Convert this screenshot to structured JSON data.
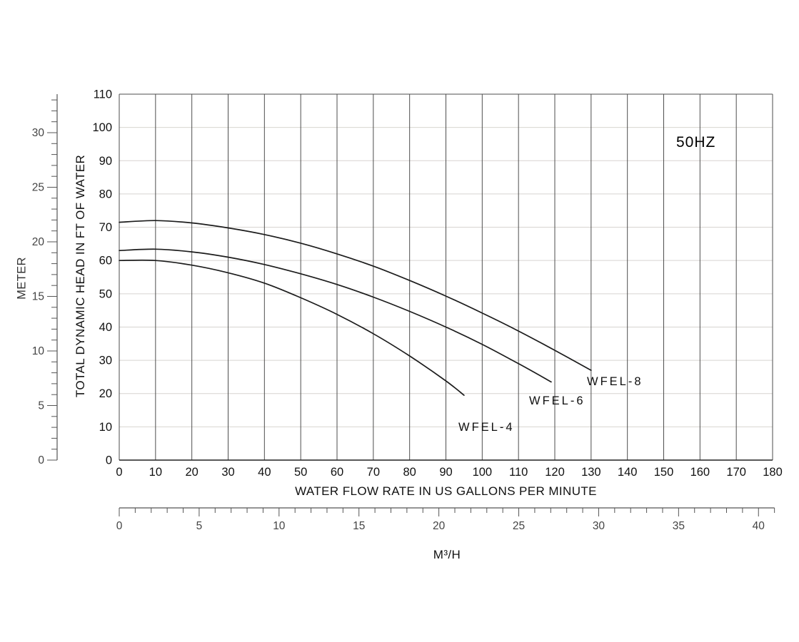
{
  "chart_data": {
    "type": "line",
    "title": "",
    "annotation": "50HZ",
    "xlabel": "WATER FLOW RATE IN US GALLONS PER MINUTE",
    "ylabel": "TOTAL DYNAMIC HEAD IN FT OF WATER",
    "x2label": "M³/H",
    "y2label": "METER",
    "xlim": [
      0,
      180
    ],
    "ylim": [
      0,
      110
    ],
    "x_ticks": [
      0,
      10,
      20,
      30,
      40,
      50,
      60,
      70,
      80,
      90,
      100,
      110,
      120,
      130,
      140,
      150,
      160,
      170,
      180
    ],
    "y_ticks": [
      0,
      10,
      20,
      30,
      40,
      50,
      60,
      70,
      80,
      90,
      100,
      110
    ],
    "meter_ticks": [
      0,
      5,
      10,
      15,
      20,
      25,
      30
    ],
    "meter_minor_max": 33,
    "m3h_ticks": [
      0,
      5,
      10,
      15,
      20,
      25,
      30,
      35,
      40
    ],
    "m3h_minor_max": 41,
    "grid": true,
    "legend_position": "inline-labels",
    "series": [
      {
        "name": "WFEL-8",
        "x": [
          0,
          10,
          20,
          30,
          40,
          50,
          60,
          70,
          80,
          90,
          100,
          110,
          120,
          130
        ],
        "y": [
          71.5,
          72.0,
          71.3,
          69.8,
          67.8,
          65.2,
          62.0,
          58.3,
          54.0,
          49.3,
          44.2,
          38.8,
          33.0,
          27.0
        ]
      },
      {
        "name": "WFEL-6",
        "x": [
          0,
          10,
          20,
          30,
          40,
          50,
          60,
          70,
          80,
          90,
          100,
          110,
          119
        ],
        "y": [
          63.0,
          63.4,
          62.6,
          61.0,
          58.8,
          56.0,
          52.8,
          49.0,
          44.7,
          40.0,
          34.8,
          29.0,
          23.5
        ]
      },
      {
        "name": "WFEL-4",
        "x": [
          0,
          10,
          20,
          30,
          40,
          50,
          60,
          70,
          80,
          90,
          95
        ],
        "y": [
          60.0,
          60.0,
          58.6,
          56.3,
          53.2,
          48.8,
          43.8,
          38.0,
          31.3,
          23.8,
          19.5
        ]
      }
    ],
    "colors": {
      "curve": "#1c1c1c",
      "grid_vertical": "#4e4e4e",
      "grid_horizontal_faint": "#d7d4d0",
      "axis": "#222222",
      "tick_text": "#111111",
      "ruler_text": "#444444"
    }
  }
}
